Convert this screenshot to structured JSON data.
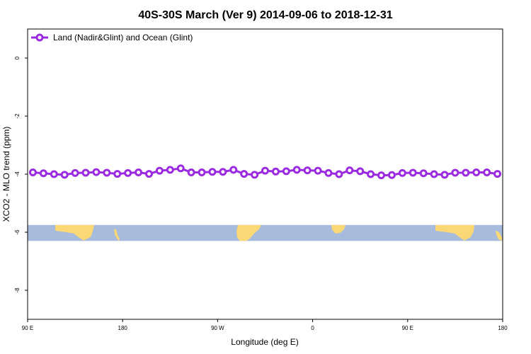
{
  "chart_data": {
    "type": "line",
    "title": "40S-30S March (Ver 9)   2014-09-06 to 2018-12-31",
    "xlabel": "Longitude (deg E)",
    "ylabel": "XCO2 - MLO trend (ppm)",
    "ylim": [
      -9.0,
      1.0
    ],
    "x_axis_range": [
      90,
      540
    ],
    "x_ticks": [
      {
        "value": 90,
        "label": "90 E"
      },
      {
        "value": 180,
        "label": "180"
      },
      {
        "value": 270,
        "label": "90 W"
      },
      {
        "value": 360,
        "label": "0"
      },
      {
        "value": 450,
        "label": "90 E"
      },
      {
        "value": 540,
        "label": "180"
      }
    ],
    "y_ticks": [
      0,
      -2,
      -4,
      -6,
      -8
    ],
    "y_tick_labels": [
      "0",
      "-2",
      "-4",
      "-6",
      "-8"
    ],
    "legend": {
      "position": "top-left"
    },
    "grid": false,
    "map_strip": {
      "description": "map of 40S-30S latitude band",
      "y_top": -5.75,
      "y_bottom": -6.3,
      "ocean_color": "#a7bbdc",
      "land_color": "#fbd876"
    },
    "series": [
      {
        "name": "Land (Nadir&Glint) and Ocean (Glint)",
        "color": "#9b2be0",
        "x": [
          95,
          105,
          115,
          125,
          135,
          145,
          155,
          165,
          175,
          185,
          195,
          205,
          215,
          225,
          235,
          245,
          255,
          265,
          275,
          285,
          295,
          305,
          315,
          325,
          335,
          345,
          355,
          365,
          375,
          385,
          395,
          405,
          415,
          425,
          435,
          445,
          455,
          465,
          475,
          485,
          495,
          505,
          515,
          525,
          535
        ],
        "values": [
          -3.94,
          -3.97,
          -4.0,
          -4.02,
          -3.96,
          -3.95,
          -3.93,
          -3.95,
          -3.99,
          -3.96,
          -3.94,
          -3.99,
          -3.88,
          -3.85,
          -3.8,
          -3.94,
          -3.94,
          -3.92,
          -3.92,
          -3.85,
          -3.99,
          -4.02,
          -3.88,
          -3.91,
          -3.9,
          -3.85,
          -3.87,
          -3.88,
          -3.96,
          -4.0,
          -3.87,
          -3.9,
          -4.0,
          -4.04,
          -4.03,
          -3.96,
          -3.95,
          -3.97,
          -4.0,
          -4.02,
          -3.95,
          -3.95,
          -3.94,
          -3.94,
          -3.99
        ]
      }
    ]
  }
}
